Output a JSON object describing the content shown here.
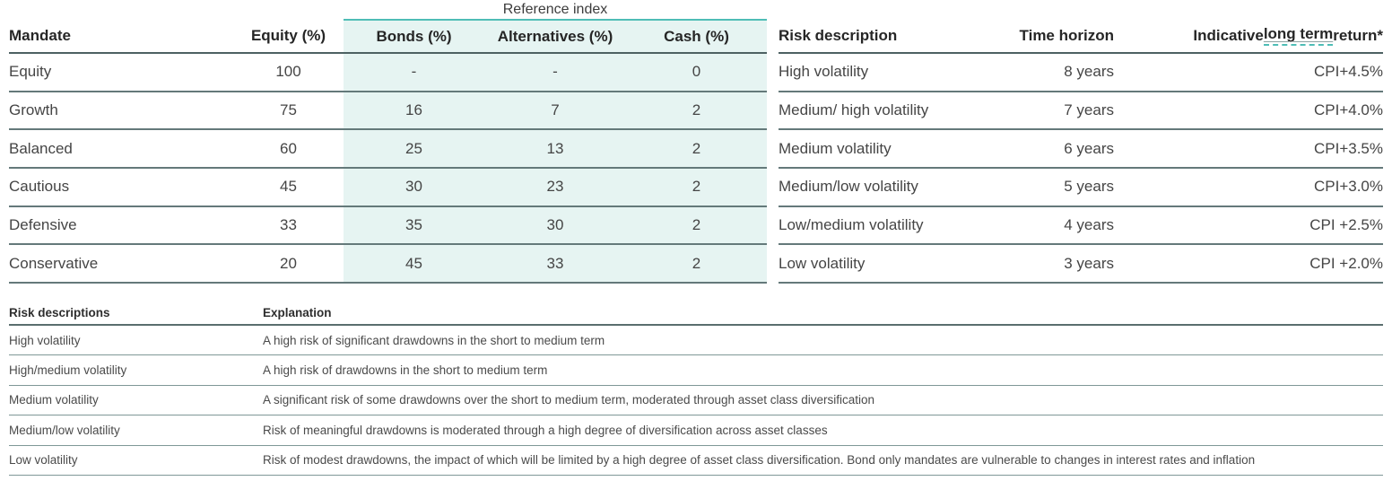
{
  "colors": {
    "teal_band_bg": "#e6f4f2",
    "teal_accent": "#4fbdb6",
    "header_text": "#262626",
    "body_text": "#454545",
    "table1_line": "#64797a",
    "table1_header_line": "#4d6162",
    "table2_line": "#7f9897",
    "table2_header_line": "#5a6e6e"
  },
  "allocation_table": {
    "group_header": "Reference index",
    "columns": {
      "mandate": "Mandate",
      "equity": "Equity (%)",
      "bonds": "Bonds (%)",
      "alternatives": "Alternatives (%)",
      "cash": "Cash (%)",
      "risk": "Risk description",
      "horizon": "Time horizon",
      "indicative_prefix": "Indicative ",
      "indicative_glossary": "long term",
      "indicative_suffix": " return*"
    },
    "rows": [
      {
        "mandate": "Equity",
        "equity": "100",
        "bonds": "-",
        "alternatives": "-",
        "cash": "0",
        "risk": "High volatility",
        "horizon": "8 years",
        "return": "CPI+4.5%"
      },
      {
        "mandate": "Growth",
        "equity": "75",
        "bonds": "16",
        "alternatives": "7",
        "cash": "2",
        "risk": "Medium/ high volatility",
        "horizon": "7 years",
        "return": "CPI+4.0%"
      },
      {
        "mandate": "Balanced",
        "equity": "60",
        "bonds": "25",
        "alternatives": "13",
        "cash": "2",
        "risk": "Medium volatility",
        "horizon": "6 years",
        "return": "CPI+3.5%"
      },
      {
        "mandate": "Cautious",
        "equity": "45",
        "bonds": "30",
        "alternatives": "23",
        "cash": "2",
        "risk": "Medium/low volatility",
        "horizon": "5 years",
        "return": "CPI+3.0%"
      },
      {
        "mandate": "Defensive",
        "equity": "33",
        "bonds": "35",
        "alternatives": "30",
        "cash": "2",
        "risk": "Low/medium volatility",
        "horizon": "4 years",
        "return": "CPI +2.5%"
      },
      {
        "mandate": "Conservative",
        "equity": "20",
        "bonds": "45",
        "alternatives": "33",
        "cash": "2",
        "risk": "Low volatility",
        "horizon": "3 years",
        "return": "CPI +2.0%"
      }
    ]
  },
  "risk_table": {
    "headers": {
      "risk": "Risk descriptions",
      "explanation": "Explanation"
    },
    "rows": [
      {
        "risk": "High volatility",
        "explanation": "A high risk of significant drawdowns in the short to medium term"
      },
      {
        "risk": "High/medium volatility",
        "explanation": "A high risk of drawdowns in the short to medium term"
      },
      {
        "risk": "Medium volatility",
        "explanation": "A significant risk of some drawdowns over the short to medium term, moderated through asset class diversification"
      },
      {
        "risk": "Medium/low volatility",
        "explanation": "Risk of meaningful drawdowns is moderated through a high degree of diversification across asset classes"
      },
      {
        "risk": "Low volatility",
        "explanation": "Risk of modest drawdowns, the impact of which will be limited by a high degree of asset class diversification. Bond only mandates are vulnerable to changes in interest rates and inflation"
      }
    ]
  }
}
